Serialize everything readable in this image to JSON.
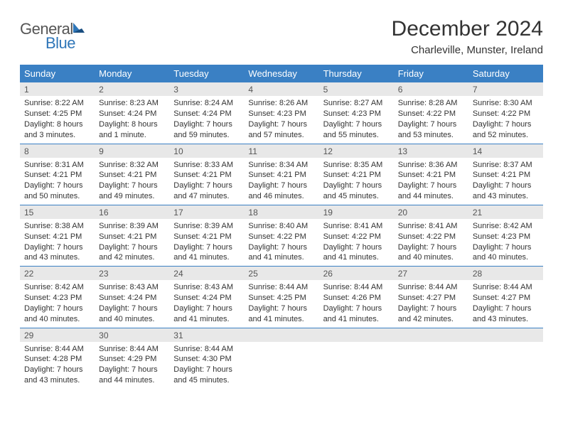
{
  "header": {
    "logo_general": "General",
    "logo_blue": "Blue",
    "month_title": "December 2024",
    "location": "Charleville, Munster, Ireland"
  },
  "colors": {
    "header_bg": "#3a80c4",
    "header_text": "#ffffff",
    "daynum_bg": "#e8e8e8",
    "row_border": "#3a80c4",
    "logo_blue": "#2f76b8",
    "logo_gray": "#555555",
    "body_text": "#333333"
  },
  "weekdays": [
    "Sunday",
    "Monday",
    "Tuesday",
    "Wednesday",
    "Thursday",
    "Friday",
    "Saturday"
  ],
  "weeks": [
    [
      {
        "num": "1",
        "sunrise": "Sunrise: 8:22 AM",
        "sunset": "Sunset: 4:25 PM",
        "daylight": "Daylight: 8 hours and 3 minutes."
      },
      {
        "num": "2",
        "sunrise": "Sunrise: 8:23 AM",
        "sunset": "Sunset: 4:24 PM",
        "daylight": "Daylight: 8 hours and 1 minute."
      },
      {
        "num": "3",
        "sunrise": "Sunrise: 8:24 AM",
        "sunset": "Sunset: 4:24 PM",
        "daylight": "Daylight: 7 hours and 59 minutes."
      },
      {
        "num": "4",
        "sunrise": "Sunrise: 8:26 AM",
        "sunset": "Sunset: 4:23 PM",
        "daylight": "Daylight: 7 hours and 57 minutes."
      },
      {
        "num": "5",
        "sunrise": "Sunrise: 8:27 AM",
        "sunset": "Sunset: 4:23 PM",
        "daylight": "Daylight: 7 hours and 55 minutes."
      },
      {
        "num": "6",
        "sunrise": "Sunrise: 8:28 AM",
        "sunset": "Sunset: 4:22 PM",
        "daylight": "Daylight: 7 hours and 53 minutes."
      },
      {
        "num": "7",
        "sunrise": "Sunrise: 8:30 AM",
        "sunset": "Sunset: 4:22 PM",
        "daylight": "Daylight: 7 hours and 52 minutes."
      }
    ],
    [
      {
        "num": "8",
        "sunrise": "Sunrise: 8:31 AM",
        "sunset": "Sunset: 4:21 PM",
        "daylight": "Daylight: 7 hours and 50 minutes."
      },
      {
        "num": "9",
        "sunrise": "Sunrise: 8:32 AM",
        "sunset": "Sunset: 4:21 PM",
        "daylight": "Daylight: 7 hours and 49 minutes."
      },
      {
        "num": "10",
        "sunrise": "Sunrise: 8:33 AM",
        "sunset": "Sunset: 4:21 PM",
        "daylight": "Daylight: 7 hours and 47 minutes."
      },
      {
        "num": "11",
        "sunrise": "Sunrise: 8:34 AM",
        "sunset": "Sunset: 4:21 PM",
        "daylight": "Daylight: 7 hours and 46 minutes."
      },
      {
        "num": "12",
        "sunrise": "Sunrise: 8:35 AM",
        "sunset": "Sunset: 4:21 PM",
        "daylight": "Daylight: 7 hours and 45 minutes."
      },
      {
        "num": "13",
        "sunrise": "Sunrise: 8:36 AM",
        "sunset": "Sunset: 4:21 PM",
        "daylight": "Daylight: 7 hours and 44 minutes."
      },
      {
        "num": "14",
        "sunrise": "Sunrise: 8:37 AM",
        "sunset": "Sunset: 4:21 PM",
        "daylight": "Daylight: 7 hours and 43 minutes."
      }
    ],
    [
      {
        "num": "15",
        "sunrise": "Sunrise: 8:38 AM",
        "sunset": "Sunset: 4:21 PM",
        "daylight": "Daylight: 7 hours and 43 minutes."
      },
      {
        "num": "16",
        "sunrise": "Sunrise: 8:39 AM",
        "sunset": "Sunset: 4:21 PM",
        "daylight": "Daylight: 7 hours and 42 minutes."
      },
      {
        "num": "17",
        "sunrise": "Sunrise: 8:39 AM",
        "sunset": "Sunset: 4:21 PM",
        "daylight": "Daylight: 7 hours and 41 minutes."
      },
      {
        "num": "18",
        "sunrise": "Sunrise: 8:40 AM",
        "sunset": "Sunset: 4:22 PM",
        "daylight": "Daylight: 7 hours and 41 minutes."
      },
      {
        "num": "19",
        "sunrise": "Sunrise: 8:41 AM",
        "sunset": "Sunset: 4:22 PM",
        "daylight": "Daylight: 7 hours and 41 minutes."
      },
      {
        "num": "20",
        "sunrise": "Sunrise: 8:41 AM",
        "sunset": "Sunset: 4:22 PM",
        "daylight": "Daylight: 7 hours and 40 minutes."
      },
      {
        "num": "21",
        "sunrise": "Sunrise: 8:42 AM",
        "sunset": "Sunset: 4:23 PM",
        "daylight": "Daylight: 7 hours and 40 minutes."
      }
    ],
    [
      {
        "num": "22",
        "sunrise": "Sunrise: 8:42 AM",
        "sunset": "Sunset: 4:23 PM",
        "daylight": "Daylight: 7 hours and 40 minutes."
      },
      {
        "num": "23",
        "sunrise": "Sunrise: 8:43 AM",
        "sunset": "Sunset: 4:24 PM",
        "daylight": "Daylight: 7 hours and 40 minutes."
      },
      {
        "num": "24",
        "sunrise": "Sunrise: 8:43 AM",
        "sunset": "Sunset: 4:24 PM",
        "daylight": "Daylight: 7 hours and 41 minutes."
      },
      {
        "num": "25",
        "sunrise": "Sunrise: 8:44 AM",
        "sunset": "Sunset: 4:25 PM",
        "daylight": "Daylight: 7 hours and 41 minutes."
      },
      {
        "num": "26",
        "sunrise": "Sunrise: 8:44 AM",
        "sunset": "Sunset: 4:26 PM",
        "daylight": "Daylight: 7 hours and 41 minutes."
      },
      {
        "num": "27",
        "sunrise": "Sunrise: 8:44 AM",
        "sunset": "Sunset: 4:27 PM",
        "daylight": "Daylight: 7 hours and 42 minutes."
      },
      {
        "num": "28",
        "sunrise": "Sunrise: 8:44 AM",
        "sunset": "Sunset: 4:27 PM",
        "daylight": "Daylight: 7 hours and 43 minutes."
      }
    ],
    [
      {
        "num": "29",
        "sunrise": "Sunrise: 8:44 AM",
        "sunset": "Sunset: 4:28 PM",
        "daylight": "Daylight: 7 hours and 43 minutes."
      },
      {
        "num": "30",
        "sunrise": "Sunrise: 8:44 AM",
        "sunset": "Sunset: 4:29 PM",
        "daylight": "Daylight: 7 hours and 44 minutes."
      },
      {
        "num": "31",
        "sunrise": "Sunrise: 8:44 AM",
        "sunset": "Sunset: 4:30 PM",
        "daylight": "Daylight: 7 hours and 45 minutes."
      },
      {
        "empty": true
      },
      {
        "empty": true
      },
      {
        "empty": true
      },
      {
        "empty": true
      }
    ]
  ]
}
